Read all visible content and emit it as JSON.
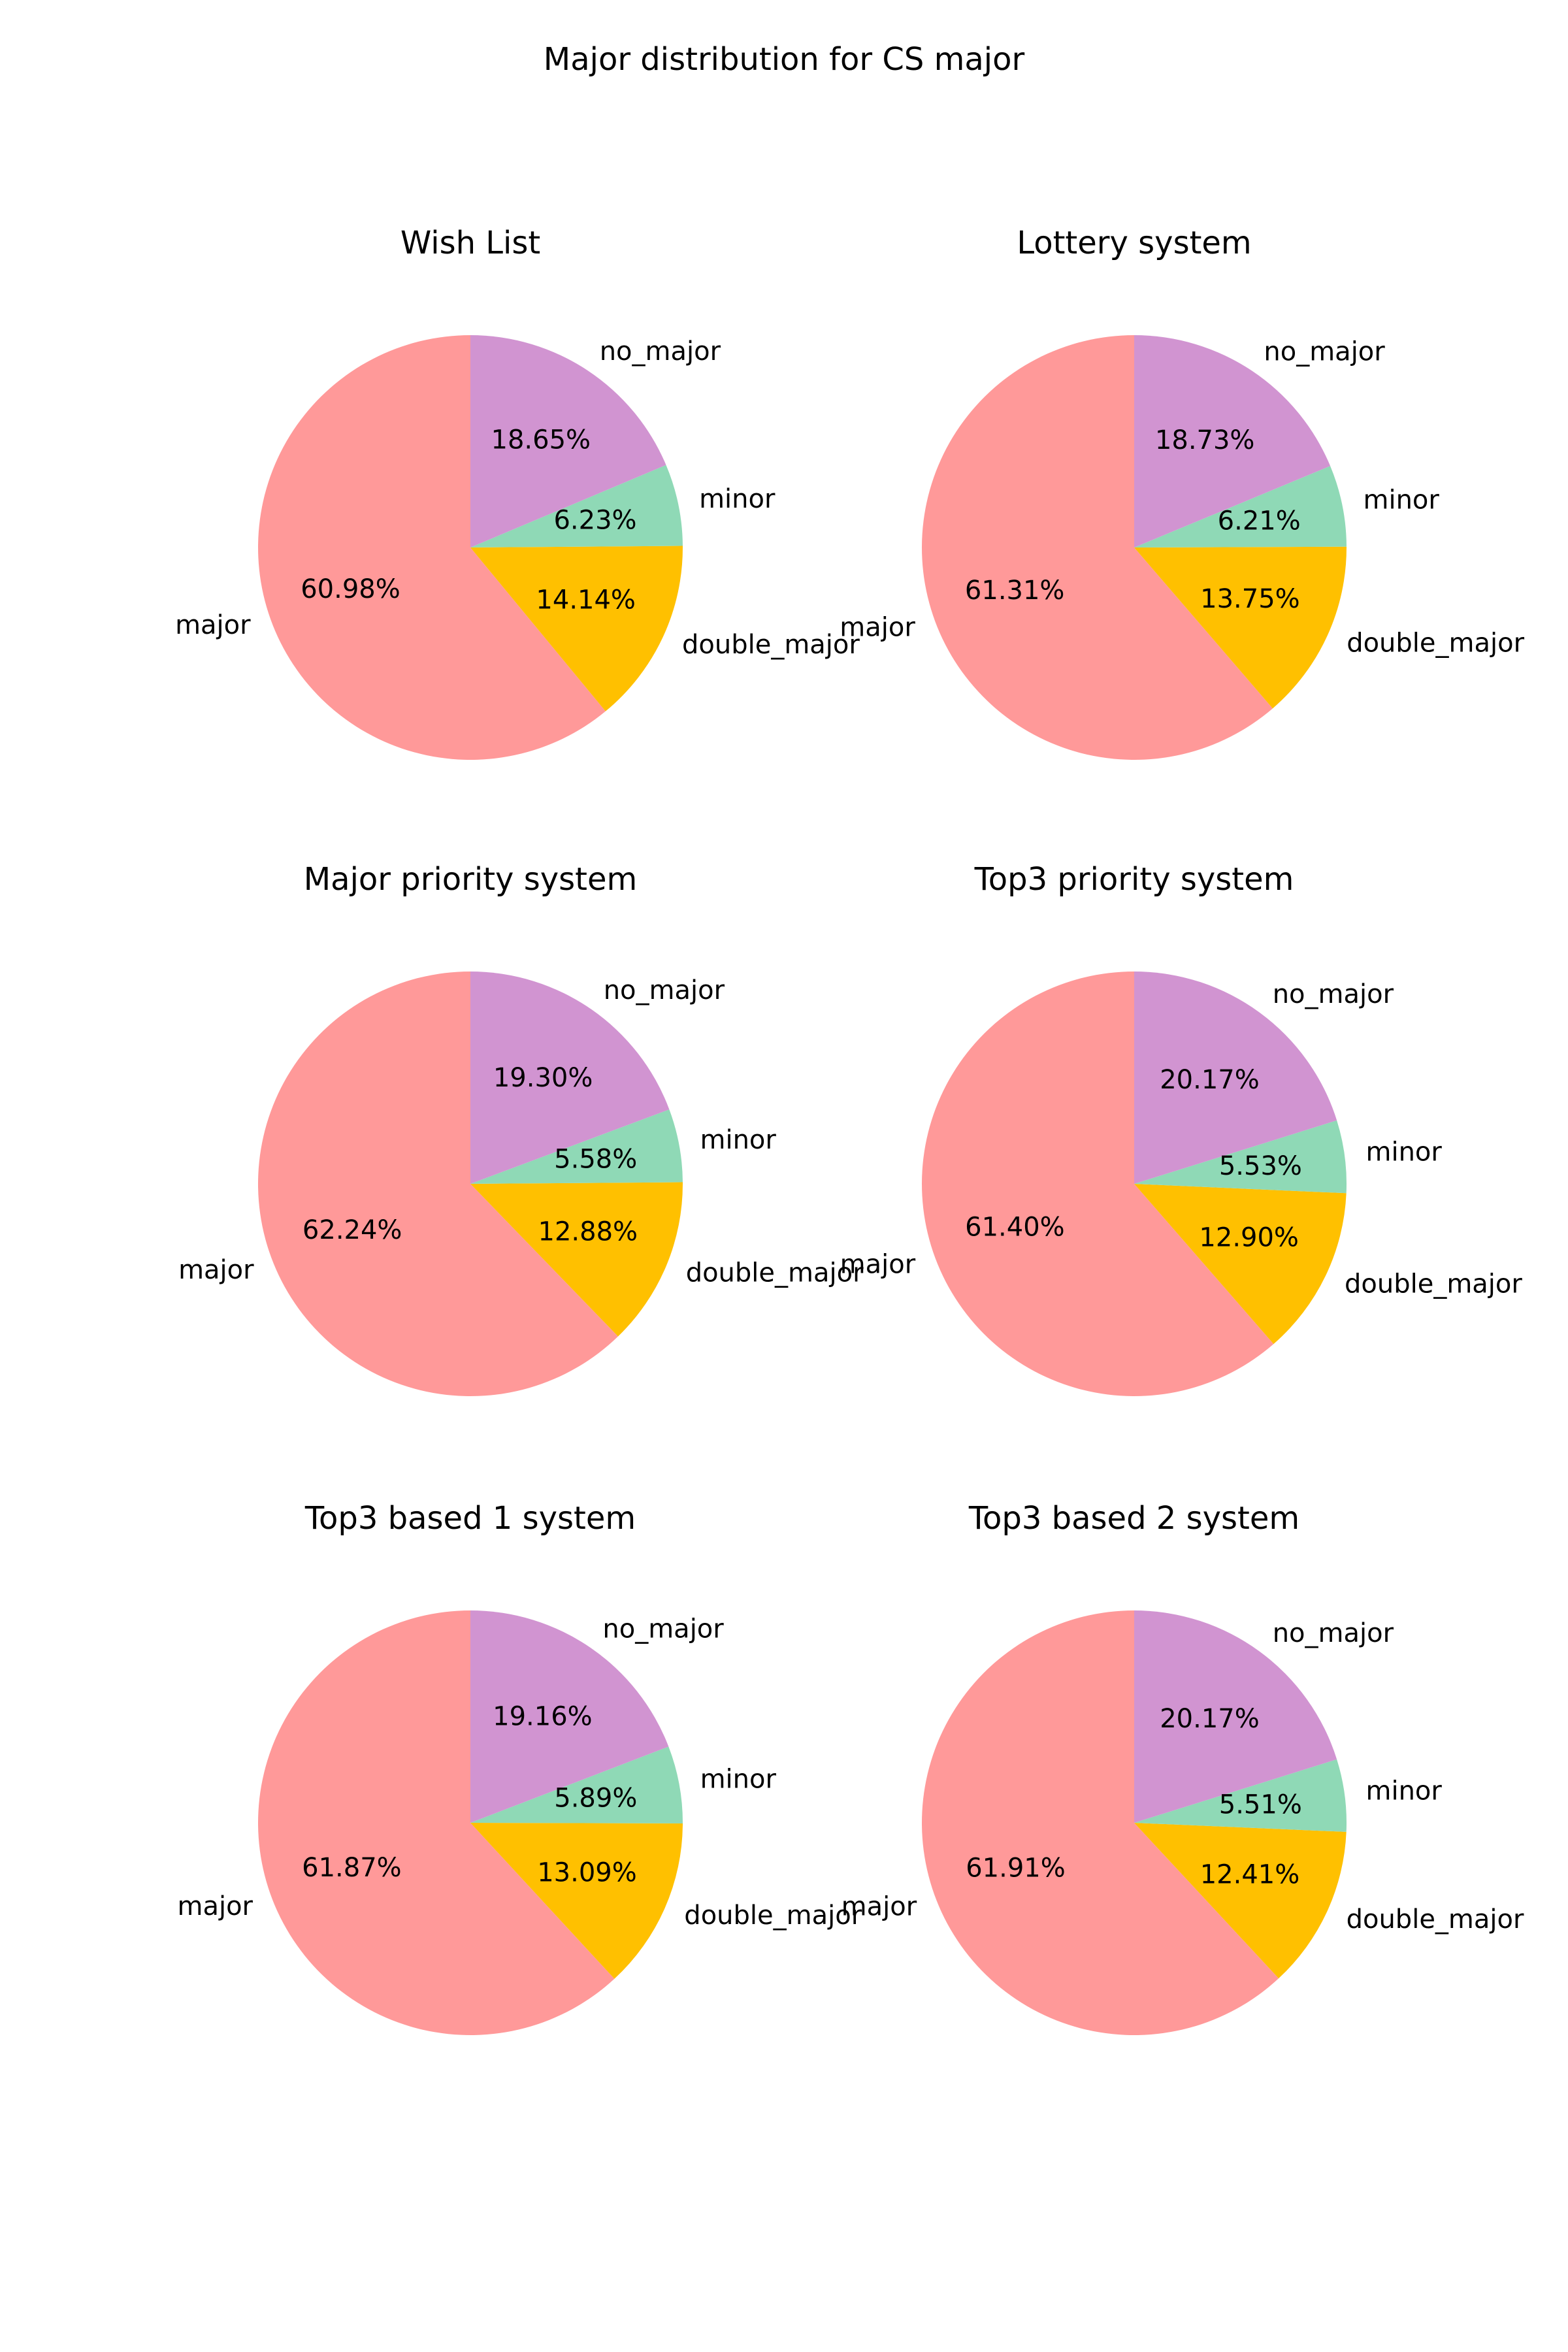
{
  "figure": {
    "title": "Major distribution for CS major"
  },
  "colors": {
    "major": "#ff9999",
    "no_major": "#d194d1",
    "minor": "#8fd9b6",
    "double_major": "#ffc000"
  },
  "chart_data": [
    {
      "type": "pie",
      "title": "Wish List",
      "categories": [
        "major",
        "double_major",
        "minor",
        "no_major"
      ],
      "values": [
        60.98,
        14.14,
        6.23,
        18.65
      ],
      "value_labels": [
        "60.98%",
        "14.14%",
        "6.23%",
        "18.65%"
      ]
    },
    {
      "type": "pie",
      "title": "Lottery system",
      "categories": [
        "major",
        "double_major",
        "minor",
        "no_major"
      ],
      "values": [
        61.31,
        13.75,
        6.21,
        18.73
      ],
      "value_labels": [
        "61.31%",
        "13.75%",
        "6.21%",
        "18.73%"
      ]
    },
    {
      "type": "pie",
      "title": "Major priority system",
      "categories": [
        "major",
        "double_major",
        "minor",
        "no_major"
      ],
      "values": [
        62.24,
        12.88,
        5.58,
        19.3
      ],
      "value_labels": [
        "62.24%",
        "12.88%",
        "5.58%",
        "19.30%"
      ]
    },
    {
      "type": "pie",
      "title": "Top3 priority system",
      "categories": [
        "major",
        "double_major",
        "minor",
        "no_major"
      ],
      "values": [
        61.4,
        12.9,
        5.53,
        20.17
      ],
      "value_labels": [
        "61.40%",
        "12.90%",
        "5.53%",
        "20.17%"
      ]
    },
    {
      "type": "pie",
      "title": "Top3 based 1 system",
      "categories": [
        "major",
        "double_major",
        "minor",
        "no_major"
      ],
      "values": [
        61.87,
        13.09,
        5.89,
        19.16
      ],
      "value_labels": [
        "61.87%",
        "13.09%",
        "5.89%",
        "19.16%"
      ]
    },
    {
      "type": "pie",
      "title": "Top3 based 2 system",
      "categories": [
        "major",
        "double_major",
        "minor",
        "no_major"
      ],
      "values": [
        61.91,
        12.41,
        5.51,
        20.17
      ],
      "value_labels": [
        "61.91%",
        "12.41%",
        "5.51%",
        "20.17%"
      ]
    }
  ]
}
